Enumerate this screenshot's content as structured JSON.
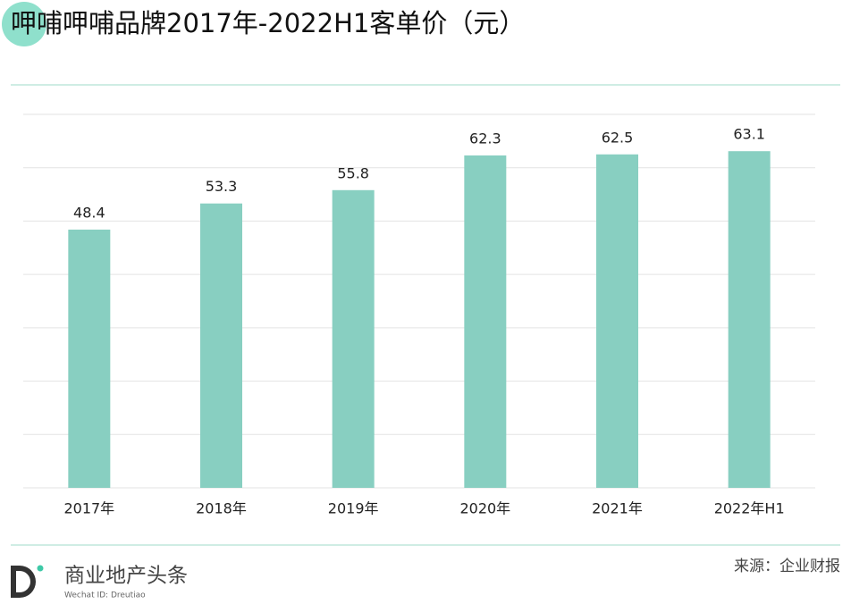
{
  "chart_data": {
    "type": "bar",
    "title": "呷哺呷哺品牌2017年-2022H1客单价（元）",
    "categories": [
      "2017年",
      "2018年",
      "2019年",
      "2020年",
      "2021年",
      "2022年H1"
    ],
    "values": [
      48.4,
      53.3,
      55.8,
      62.3,
      62.5,
      63.1
    ],
    "color": "#88cfc1",
    "ylim": [
      0,
      70
    ],
    "yticks": [
      0,
      10,
      20,
      30,
      40,
      50,
      60,
      70
    ],
    "grid": true
  },
  "footer": {
    "brand": "商业地产头条",
    "wechat": "Wechat ID: Dreutiao",
    "source": "来源：企业财报"
  }
}
